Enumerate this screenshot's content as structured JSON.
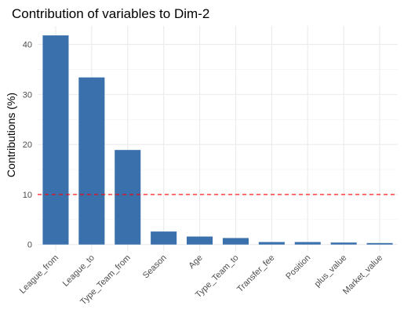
{
  "chart_data": {
    "type": "bar",
    "title": "Contribution of variables to Dim-2",
    "xlabel": "",
    "ylabel": "Contributions (%)",
    "categories": [
      "League_from",
      "League_to",
      "Type_Team_from",
      "Season",
      "Age",
      "Type_Team_to",
      "Transfer_fee",
      "Position",
      "plus_value",
      "Market_value"
    ],
    "values": [
      41.8,
      33.4,
      18.9,
      2.6,
      1.6,
      1.3,
      0.5,
      0.5,
      0.4,
      0.3
    ],
    "ylim": [
      -1.3,
      43.7
    ],
    "yticks": [
      0,
      10,
      20,
      30,
      40
    ],
    "reference_line": {
      "value": 10,
      "color": "#ff0000",
      "style": "dashed"
    },
    "bar_color": "#3a70ab",
    "grid": true
  }
}
